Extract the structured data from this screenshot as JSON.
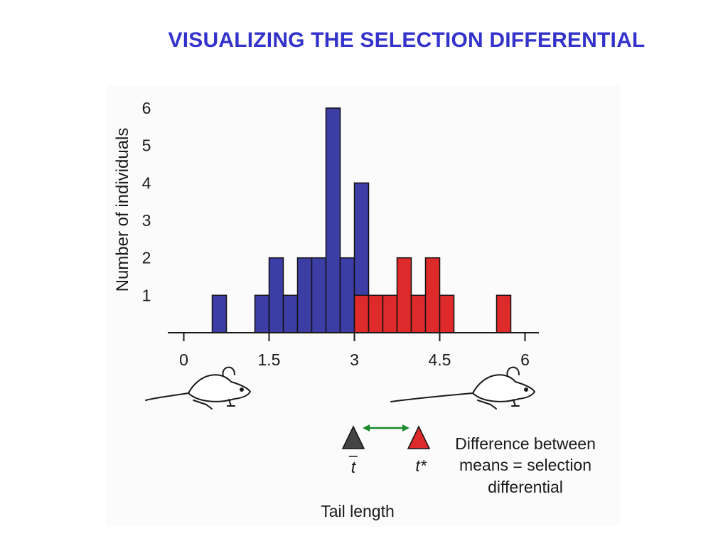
{
  "slide": {
    "title": "VISUALIZING THE SELECTION DIFFERENTIAL"
  },
  "chart_data": {
    "type": "bar",
    "title": "",
    "xlabel": "Tail length",
    "ylabel": "Number of individuals",
    "xlim": [
      -0.05,
      6.45
    ],
    "ylim": [
      0,
      6
    ],
    "xticks": [
      0,
      1.5,
      3,
      4.5,
      6
    ],
    "xtick_labels": [
      "0",
      "1.5",
      "3",
      "4.5",
      "6"
    ],
    "yticks": [
      1,
      2,
      3,
      4,
      5,
      6
    ],
    "ytick_labels": [
      "1",
      "2",
      "3",
      "4",
      "5",
      "6"
    ],
    "bin_width": 0.25,
    "series": [
      {
        "color": "#3d3da6",
        "bins": [
          {
            "x": 0.5,
            "count": 1
          },
          {
            "x": 1.25,
            "count": 1
          },
          {
            "x": 1.5,
            "count": 2
          },
          {
            "x": 1.75,
            "count": 1
          },
          {
            "x": 2.0,
            "count": 2
          },
          {
            "x": 2.25,
            "count": 2
          },
          {
            "x": 2.5,
            "count": 6
          },
          {
            "x": 2.75,
            "count": 2
          },
          {
            "x": 3.0,
            "count": 4
          }
        ]
      },
      {
        "color": "#de2a2a",
        "bins": [
          {
            "x": 3.0,
            "count": 1
          },
          {
            "x": 3.25,
            "count": 1
          },
          {
            "x": 3.5,
            "count": 1
          },
          {
            "x": 3.75,
            "count": 2
          },
          {
            "x": 4.0,
            "count": 1
          },
          {
            "x": 4.25,
            "count": 2
          },
          {
            "x": 4.5,
            "count": 1
          },
          {
            "x": 5.5,
            "count": 1
          }
        ]
      }
    ],
    "annotation": {
      "mean_label": "t",
      "selected_mean_label": "t*",
      "mean_color": "#444444",
      "selected_mean_color": "#de2a2a",
      "arrow_color": "#1a8a2a",
      "text_lines": [
        "Difference between",
        "means = selection",
        "differential"
      ]
    }
  }
}
